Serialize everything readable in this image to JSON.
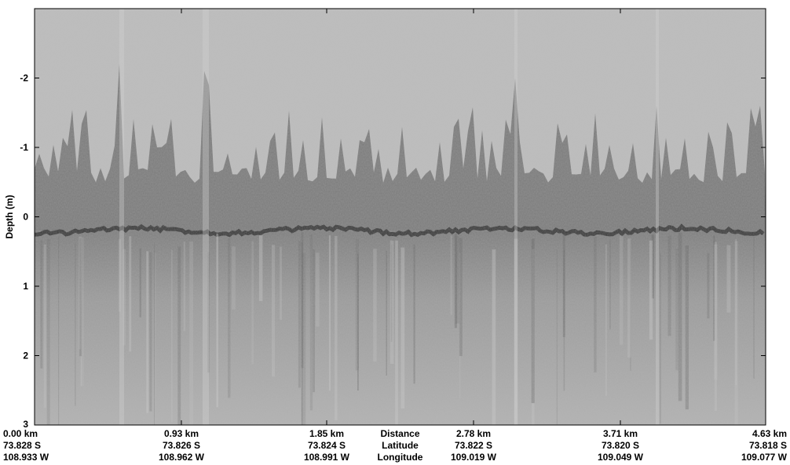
{
  "chart_data": {
    "type": "heatmap",
    "ylabel": "Depth (m)",
    "ylim": [
      3,
      -3
    ],
    "yticks": [
      "-2",
      "-1",
      "0",
      "1",
      "2",
      "3"
    ],
    "ytick_values": [
      -2,
      -1,
      0,
      1,
      2,
      3
    ],
    "x_row_labels": [
      "Distance",
      "Latitude",
      "Longitude"
    ],
    "x_ticks": [
      {
        "distance_km": 0.0,
        "distance": "0.00 km",
        "latitude": "73.828 S",
        "longitude": "108.933 W"
      },
      {
        "distance_km": 0.93,
        "distance": "0.93 km",
        "latitude": "73.826 S",
        "longitude": "108.962 W"
      },
      {
        "distance_km": 1.85,
        "distance": "1.85 km",
        "latitude": "73.824 S",
        "longitude": "108.991 W"
      },
      {
        "distance_km": 2.78,
        "distance": "2.78 km",
        "latitude": "73.822 S",
        "longitude": "109.019 W"
      },
      {
        "distance_km": 3.71,
        "distance": "3.71 km",
        "latitude": "73.820 S",
        "longitude": "109.049 W"
      },
      {
        "distance_km": 4.63,
        "distance": "4.63 km",
        "latitude": "73.818 S",
        "longitude": "109.077 W"
      }
    ],
    "xlim": [
      0,
      4.63
    ],
    "colormap": "grayscale",
    "background_color": "#bdbdbd",
    "surface_color": "#3a3a3a",
    "grid": false
  }
}
